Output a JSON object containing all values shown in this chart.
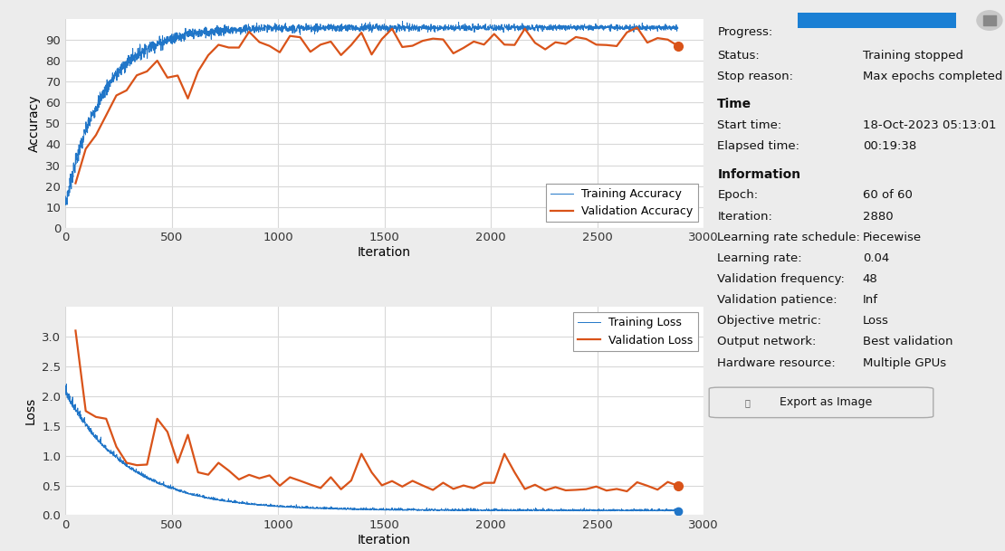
{
  "fig_width": 11.1,
  "fig_height": 6.09,
  "bg_color": "#ececec",
  "plot_bg_color": "#ffffff",
  "blue_color": "#2176c8",
  "orange_color": "#d95319",
  "info_panel": {
    "progress_label": "Progress:",
    "status_label": "Status:",
    "status_value": "Training stopped",
    "stop_reason_label": "Stop reason:",
    "stop_reason_value": "Max epochs completed",
    "time_header": "Time",
    "start_time_label": "Start time:",
    "start_time_value": "18-Oct-2023 05:13:01",
    "elapsed_label": "Elapsed time:",
    "elapsed_value": "00:19:38",
    "info_header": "Information",
    "epoch_label": "Epoch:",
    "epoch_value": "60 of 60",
    "iteration_label": "Iteration:",
    "iteration_value": "2880",
    "lr_schedule_label": "Learning rate schedule:",
    "lr_schedule_value": "Piecewise",
    "lr_label": "Learning rate:",
    "lr_value": "0.04",
    "val_freq_label": "Validation frequency:",
    "val_freq_value": "48",
    "val_patience_label": "Validation patience:",
    "val_patience_value": "Inf",
    "obj_metric_label": "Objective metric:",
    "obj_metric_value": "Loss",
    "output_net_label": "Output network:",
    "output_net_value": "Best validation",
    "hw_resource_label": "Hardware resource:",
    "hw_resource_value": "Multiple GPUs",
    "export_button": "  Export as Image"
  },
  "acc_ylim": [
    0,
    100
  ],
  "acc_yticks": [
    0,
    10,
    20,
    30,
    40,
    50,
    60,
    70,
    80,
    90
  ],
  "loss_ylim": [
    0,
    3.5
  ],
  "loss_yticks": [
    0,
    0.5,
    1.0,
    1.5,
    2.0,
    2.5,
    3.0
  ],
  "xlim": [
    0,
    3000
  ],
  "xticks": [
    0,
    500,
    1000,
    1500,
    2000,
    2500,
    3000
  ],
  "xlabel": "Iteration",
  "acc_ylabel": "Accuracy",
  "loss_ylabel": "Loss",
  "train_acc_label": "Training Accuracy",
  "val_acc_label": "Validation Accuracy",
  "train_loss_label": "Training Loss",
  "val_loss_label": "Validation Loss"
}
